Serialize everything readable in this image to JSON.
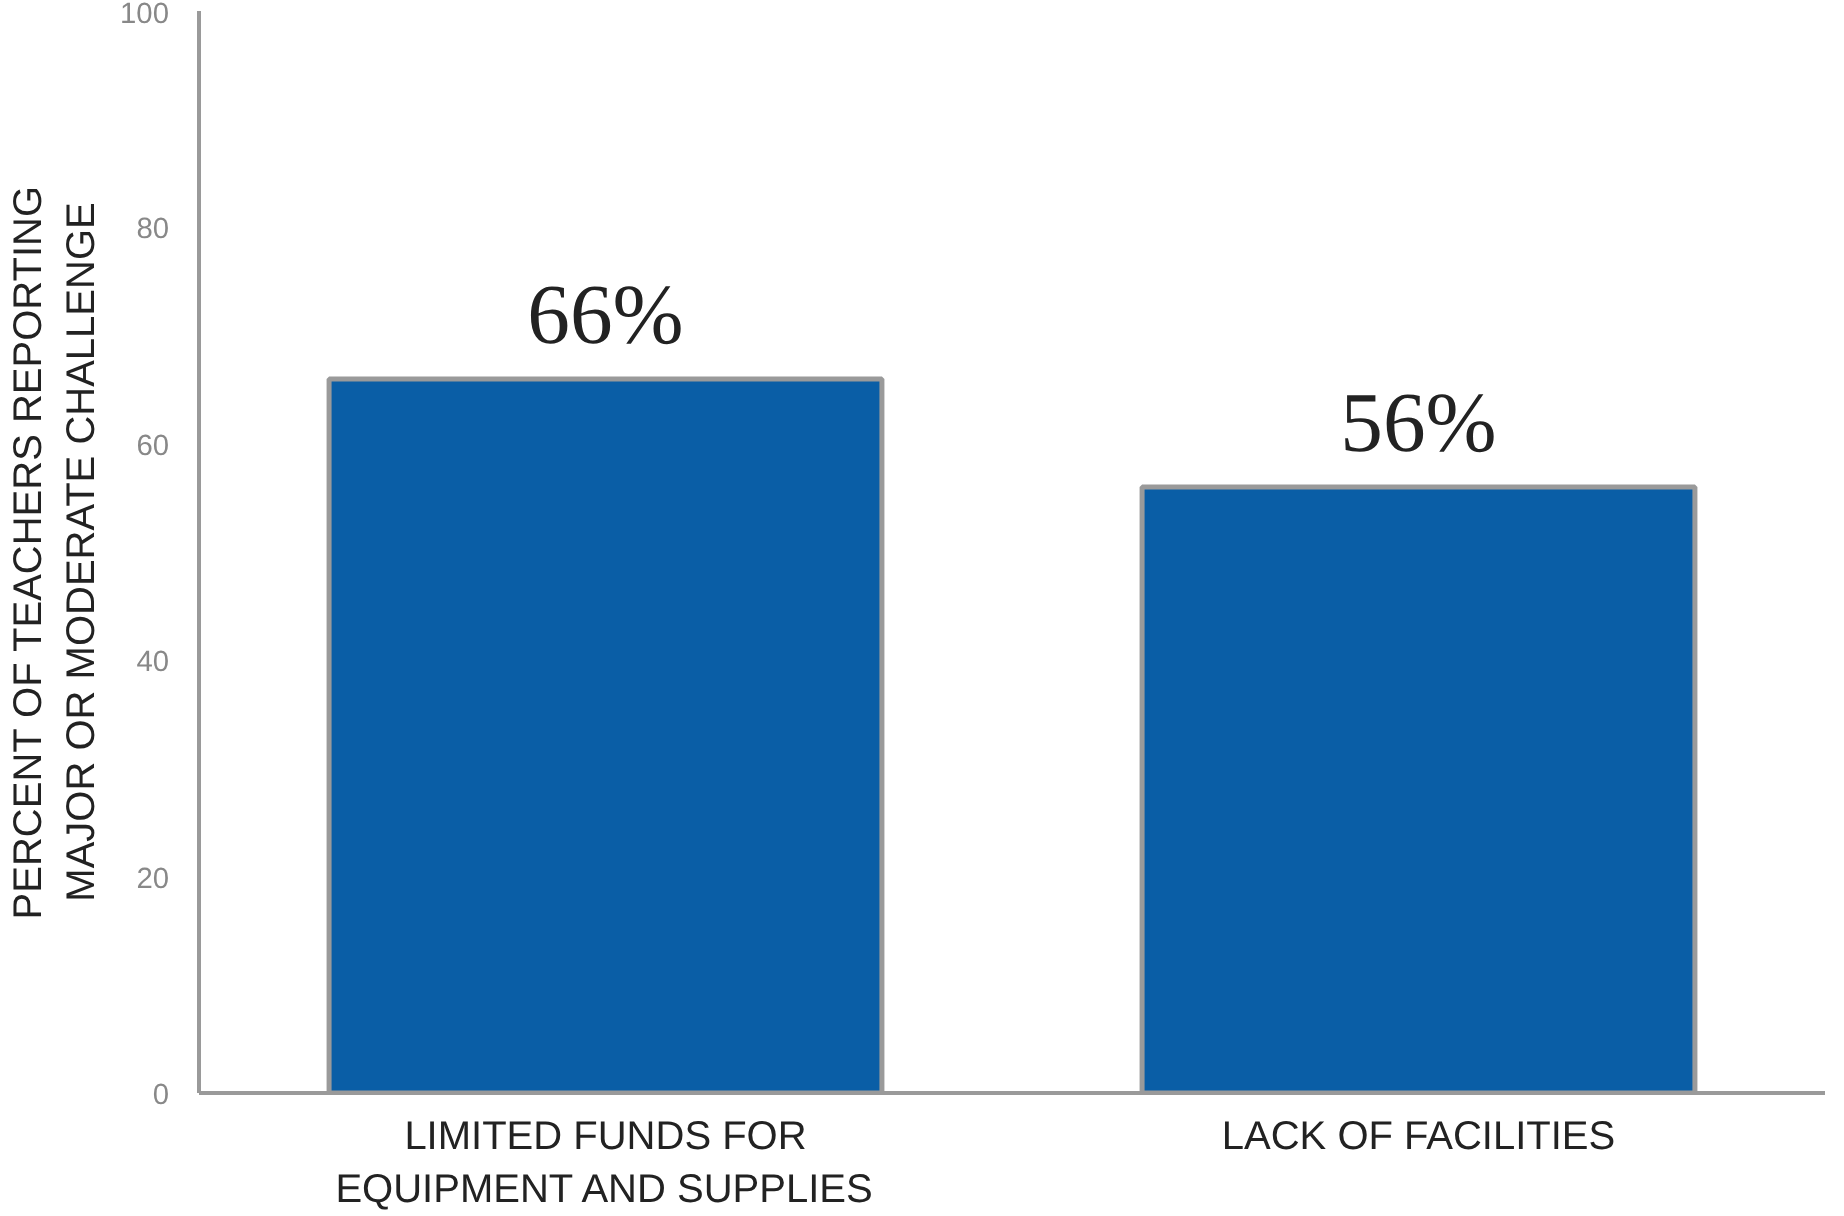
{
  "chart_data": {
    "type": "bar",
    "ylabel": "PERCENT OF TEACHERS REPORTING\nMAJOR OR MODERATE CHALLENGE",
    "categories": [
      "LIMITED FUNDS FOR\nEQUIPMENT AND SUPPLIES",
      "LACK OF FACILITIES"
    ],
    "values": [
      66,
      56
    ],
    "color": "#0a5ea6",
    "value_labels": [
      "66%",
      "56%"
    ],
    "ylim": [
      0,
      100
    ],
    "yticks": [
      0,
      20,
      40,
      60,
      80,
      100
    ],
    "grid": false
  }
}
